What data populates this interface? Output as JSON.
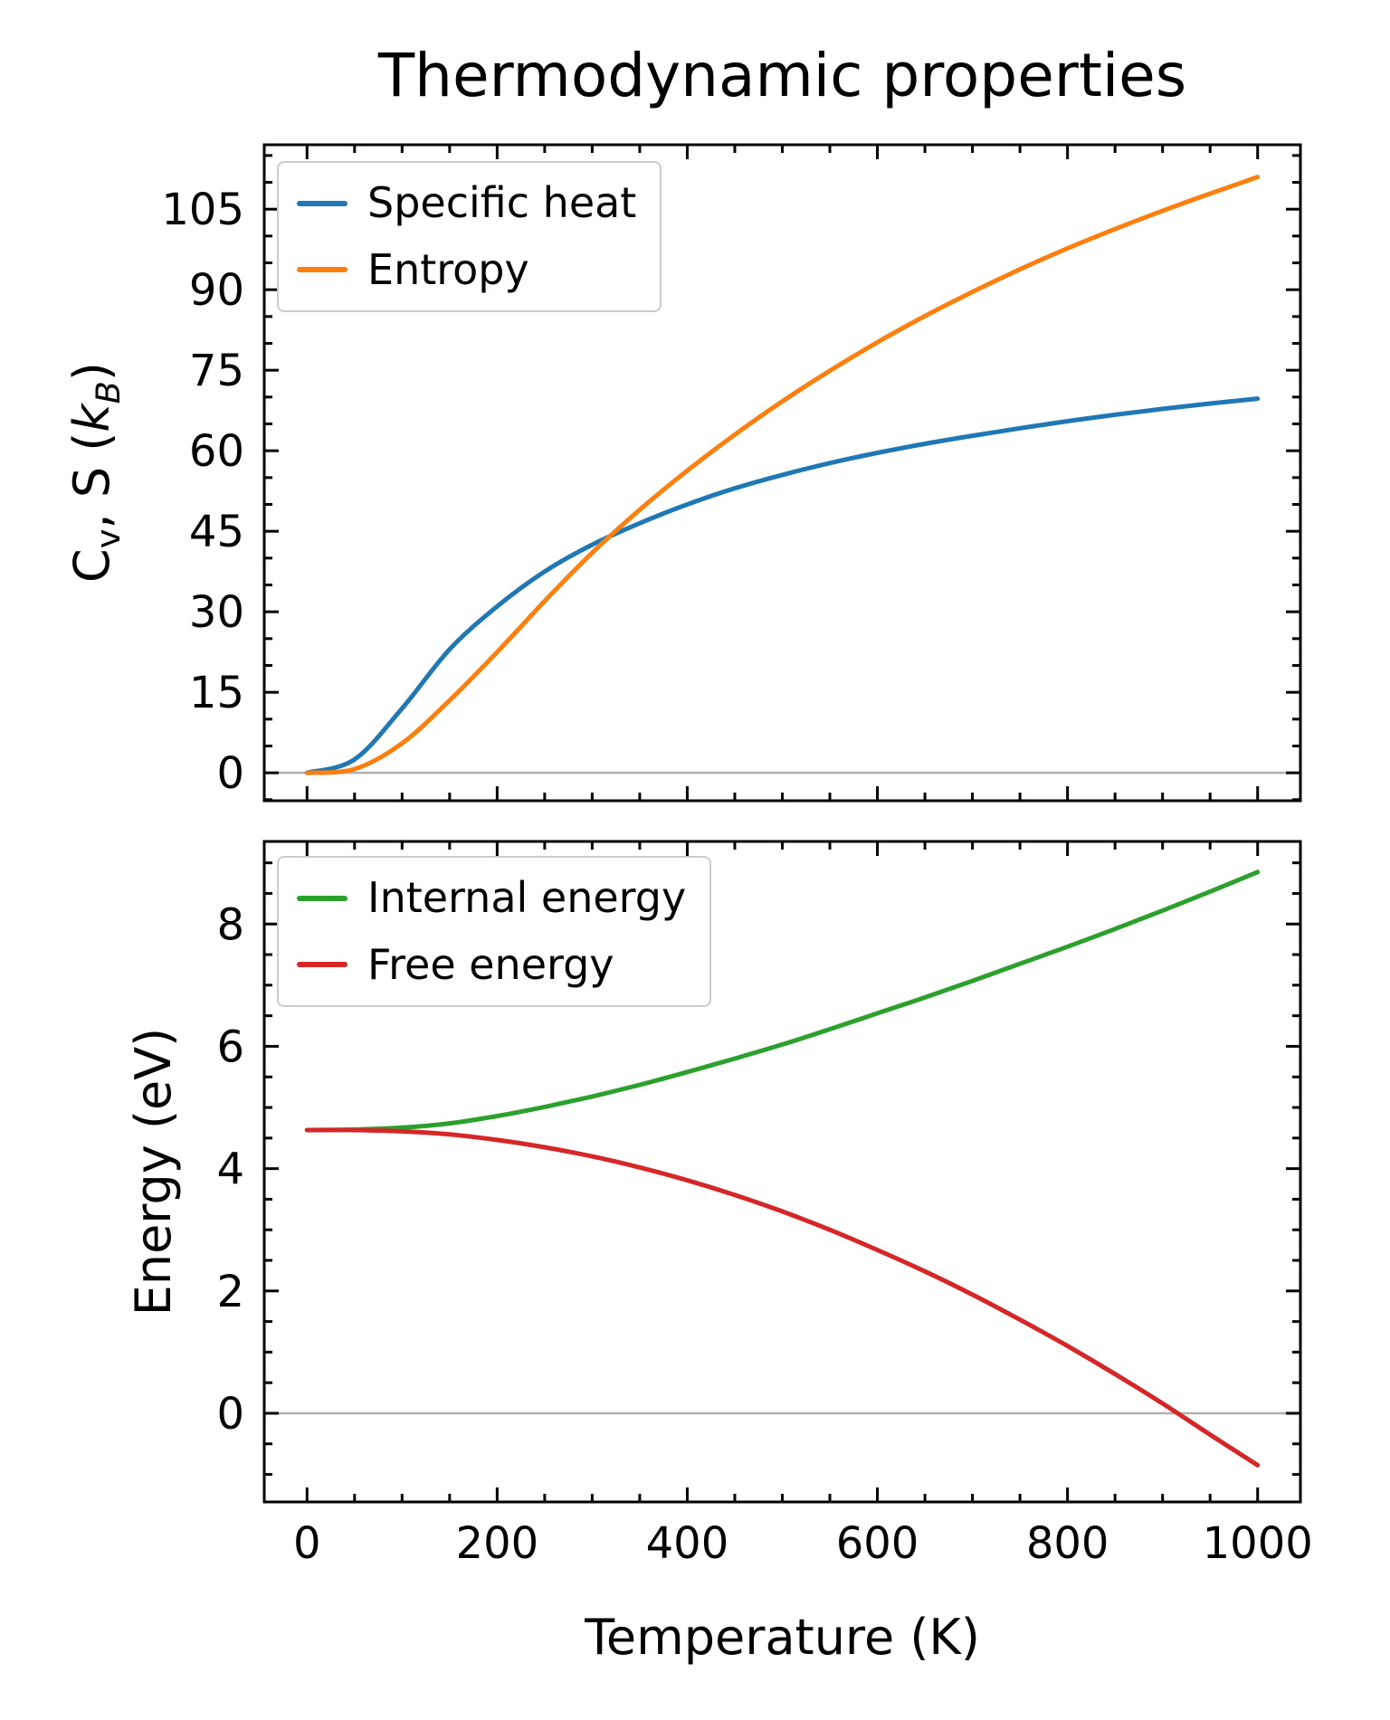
{
  "chart_data": [
    {
      "type": "line",
      "title": "Thermodynamic properties",
      "ylabel": "Cv, S (kB)",
      "ylabel_parts": {
        "c": "C",
        "c_sub": "v",
        "mid": ", S (",
        "k": "k",
        "k_sub": "B",
        "close": ")"
      },
      "xlabel": "",
      "x": [
        0,
        50,
        100,
        150,
        200,
        250,
        300,
        350,
        400,
        450,
        500,
        550,
        600,
        650,
        700,
        750,
        800,
        850,
        900,
        950,
        1000
      ],
      "series": [
        {
          "name": "Specific heat",
          "color": "#1f77b4",
          "values": [
            0,
            2.5,
            12,
            23,
            31,
            37.5,
            42.5,
            46.5,
            50,
            53,
            55.5,
            57.7,
            59.6,
            61.3,
            62.8,
            64.2,
            65.5,
            66.7,
            67.8,
            68.8,
            69.7
          ]
        },
        {
          "name": "Entropy",
          "color": "#ff7f0e",
          "values": [
            0,
            0.7,
            5.5,
            13.5,
            22.5,
            32,
            41,
            49,
            56.3,
            63,
            69.2,
            74.9,
            80.2,
            85.1,
            89.6,
            93.8,
            97.7,
            101.3,
            104.7,
            107.9,
            111
          ]
        }
      ],
      "xlim": [
        -45,
        1045
      ],
      "ylim": [
        -5.2,
        117
      ],
      "x_ticks": [
        0,
        200,
        400,
        600,
        800,
        1000
      ],
      "show_x_tick_labels": false,
      "y_ticks": [
        0,
        15,
        30,
        45,
        60,
        75,
        90,
        105
      ],
      "legend_position": "upper-left",
      "grid": false,
      "zero_line": true
    },
    {
      "type": "line",
      "title": "",
      "ylabel": "Energy (eV)",
      "xlabel": "Temperature (K)",
      "x": [
        0,
        50,
        100,
        150,
        200,
        250,
        300,
        350,
        400,
        450,
        500,
        550,
        600,
        650,
        700,
        750,
        800,
        850,
        900,
        950,
        1000
      ],
      "series": [
        {
          "name": "Internal energy",
          "color": "#2ca02c",
          "values": [
            4.63,
            4.64,
            4.67,
            4.74,
            4.86,
            5.01,
            5.18,
            5.37,
            5.58,
            5.8,
            6.03,
            6.28,
            6.54,
            6.8,
            7.07,
            7.35,
            7.63,
            7.92,
            8.22,
            8.53,
            8.85
          ]
        },
        {
          "name": "Free energy",
          "color": "#d62728",
          "values": [
            4.63,
            4.63,
            4.61,
            4.56,
            4.47,
            4.35,
            4.2,
            4.02,
            3.81,
            3.57,
            3.3,
            3.0,
            2.67,
            2.32,
            1.94,
            1.53,
            1.1,
            0.64,
            0.16,
            -0.35,
            -0.85
          ]
        }
      ],
      "xlim": [
        -45,
        1045
      ],
      "ylim": [
        -1.45,
        9.35
      ],
      "x_ticks": [
        0,
        200,
        400,
        600,
        800,
        1000
      ],
      "x_tick_labels": [
        "0",
        "200",
        "400",
        "600",
        "800",
        "1000"
      ],
      "show_x_tick_labels": true,
      "y_ticks": [
        0,
        2,
        4,
        6,
        8
      ],
      "legend_position": "upper-left",
      "grid": false,
      "zero_line": true
    }
  ],
  "style": {
    "frame_color": "#000000",
    "zero_line_color": "#b0b0b0",
    "background": "#ffffff"
  }
}
